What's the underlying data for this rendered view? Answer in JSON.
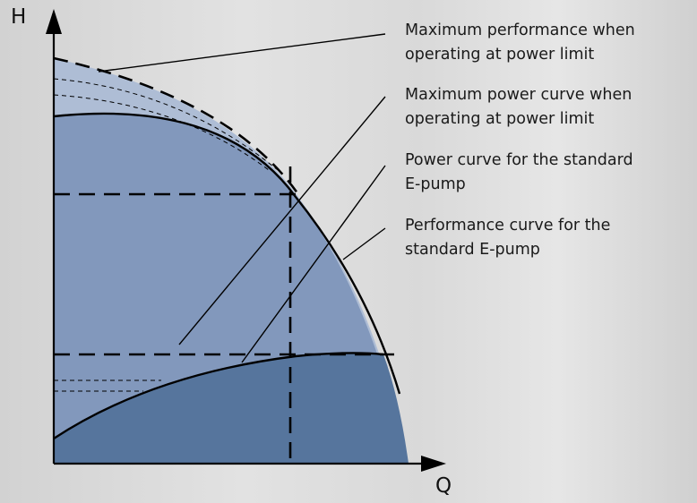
{
  "axes": {
    "y_label": "H",
    "x_label": "Q"
  },
  "callouts": [
    {
      "line1": "Maximum performance when",
      "line2": "operating at power limit"
    },
    {
      "line1": "Maximum power curve when",
      "line2": "operating at power limit"
    },
    {
      "line1": "Power curve for the standard",
      "line2": "E-pump"
    },
    {
      "line1": "Performance curve for the",
      "line2": "standard E-pump"
    }
  ],
  "colors": {
    "light_region": "#aebdd5",
    "mid_region": "#8298bc",
    "dark_region": "#56759d",
    "lines": "#000000"
  }
}
